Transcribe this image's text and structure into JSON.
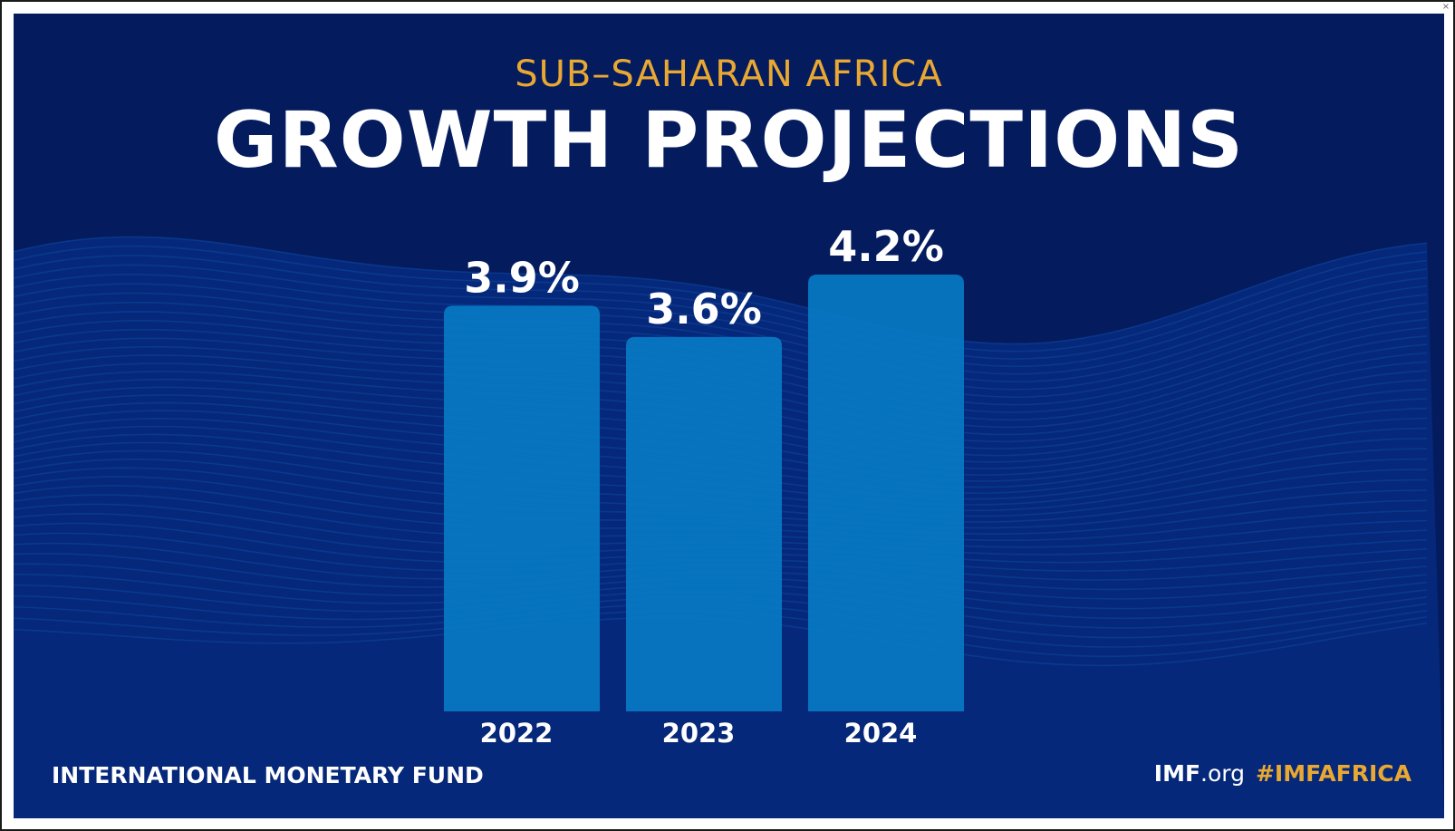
{
  "header": {
    "subtitle": "SUB–SAHARAN AFRICA",
    "title": "GROWTH PROJECTIONS"
  },
  "footer": {
    "org_name": "INTERNATIONAL MONETARY FUND",
    "site_bold": "IMF",
    "site_rest": ".org",
    "hashtag": "#IMFAFRICA"
  },
  "colors": {
    "background": "#041b5e",
    "wave": "#0a3f95",
    "bar": "#0879c4",
    "accent": "#e8a832",
    "text": "#ffffff"
  },
  "chart_data": {
    "type": "bar",
    "categories": [
      "2022",
      "2023",
      "2024"
    ],
    "values": [
      3.9,
      3.6,
      4.2
    ],
    "value_labels": [
      "3.9%",
      "3.6%",
      "4.2%"
    ],
    "ylim": [
      0,
      4.2
    ],
    "grid": false,
    "legend": "none"
  }
}
